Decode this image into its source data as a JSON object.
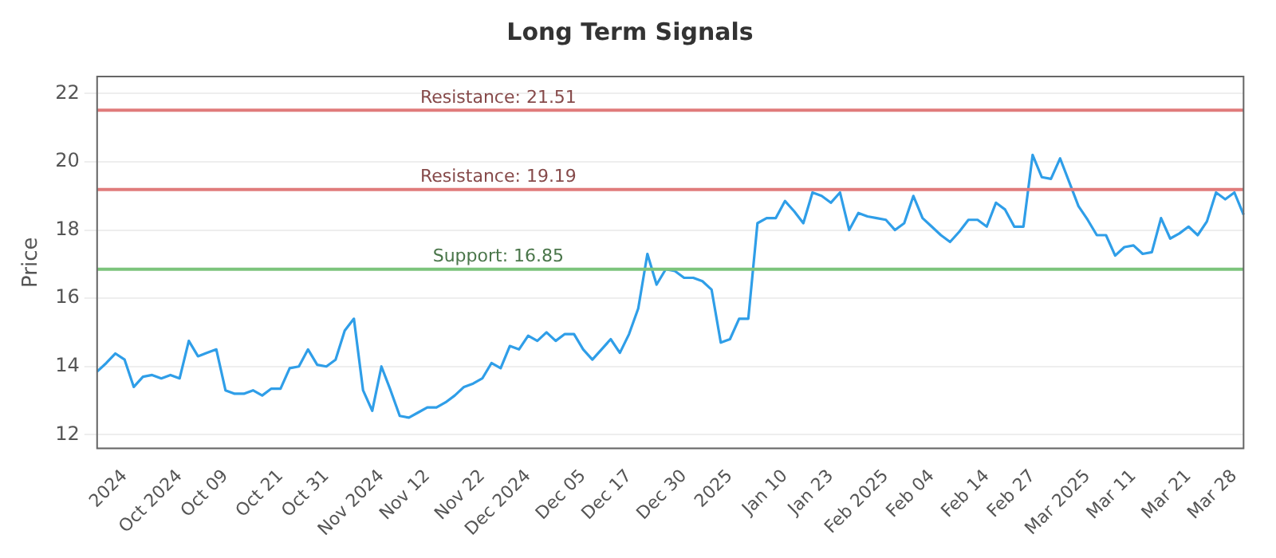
{
  "chart_data": {
    "type": "line",
    "title": "Long Term Signals",
    "ylabel": "Price",
    "categories": [
      null,
      null,
      null,
      "2024",
      null,
      null,
      null,
      null,
      null,
      "Oct 2024",
      null,
      null,
      null,
      null,
      "Oct 09",
      null,
      null,
      null,
      null,
      null,
      "Oct 21",
      null,
      null,
      null,
      null,
      "Oct 31",
      null,
      null,
      null,
      null,
      null,
      "Nov 2024",
      null,
      null,
      null,
      null,
      "Nov 12",
      null,
      null,
      null,
      null,
      null,
      "Nov 22",
      null,
      null,
      null,
      null,
      "Dec 2024",
      null,
      null,
      null,
      null,
      null,
      "Dec 05",
      null,
      null,
      null,
      null,
      "Dec 17",
      null,
      null,
      null,
      null,
      null,
      "Dec 30",
      null,
      null,
      null,
      null,
      "2025",
      null,
      null,
      null,
      null,
      null,
      "Jan 10",
      null,
      null,
      null,
      null,
      "Jan 23",
      null,
      null,
      null,
      null,
      null,
      "Feb 2025",
      null,
      null,
      null,
      null,
      "Feb 04",
      null,
      null,
      null,
      null,
      null,
      "Feb 14",
      null,
      null,
      null,
      null,
      "Feb 27",
      null,
      null,
      null,
      null,
      null,
      "Mar 2025",
      null,
      null,
      null,
      null,
      "Mar 11",
      null,
      null,
      null,
      null,
      null,
      "Mar 21",
      null,
      null,
      null,
      null,
      "Mar 28",
      null
    ],
    "series": [
      {
        "color": "#2f9ee8",
        "values": [
          13.85,
          14.1,
          14.38,
          14.2,
          13.4,
          13.7,
          13.75,
          13.65,
          13.75,
          13.65,
          14.75,
          14.3,
          14.4,
          14.5,
          13.3,
          13.2,
          13.2,
          13.3,
          13.15,
          13.35,
          13.35,
          13.95,
          14,
          14.5,
          14.05,
          14,
          14.2,
          15.05,
          15.4,
          13.3,
          12.7,
          14,
          13.3,
          12.55,
          12.5,
          12.65,
          12.8,
          12.8,
          12.95,
          13.15,
          13.4,
          13.5,
          13.65,
          14.1,
          13.95,
          14.6,
          14.5,
          14.9,
          14.75,
          15,
          14.75,
          14.95,
          14.95,
          14.5,
          14.2,
          14.5,
          14.8,
          14.4,
          14.95,
          15.7,
          17.3,
          16.4,
          16.85,
          16.8,
          16.6,
          16.6,
          16.5,
          16.25,
          14.7,
          14.8,
          15.4,
          15.4,
          18.2,
          18.35,
          18.35,
          18.85,
          18.55,
          18.2,
          19.1,
          19,
          18.8,
          19.1,
          18,
          18.5,
          18.4,
          18.35,
          18.3,
          18,
          18.2,
          19,
          18.35,
          18.1,
          17.85,
          17.65,
          17.95,
          18.3,
          18.3,
          18.1,
          18.8,
          18.6,
          18.1,
          18.1,
          20.2,
          19.55,
          19.5,
          20.1,
          19.4,
          18.7,
          18.3,
          17.85,
          17.85,
          17.25,
          17.5,
          17.55,
          17.3,
          17.35,
          18.35,
          17.75,
          17.9,
          18.1,
          17.85,
          18.25,
          19.1,
          18.9,
          19.1,
          18.45
        ]
      }
    ],
    "ylim": [
      11.6,
      22.5
    ],
    "yticks": [
      12,
      14,
      16,
      18,
      20,
      22
    ],
    "grid": "y",
    "marker": "none",
    "line_style": "solid",
    "legend": false,
    "ref_lines": [
      {
        "axis": "y",
        "value": 21.51,
        "label": "Resistance: 21.51",
        "color": "#e07b7b"
      },
      {
        "axis": "y",
        "value": 19.19,
        "label": "Resistance: 19.19",
        "color": "#e07b7b"
      },
      {
        "axis": "y",
        "value": 16.85,
        "label": "Support: 16.85",
        "color": "#7cc47c"
      }
    ]
  }
}
